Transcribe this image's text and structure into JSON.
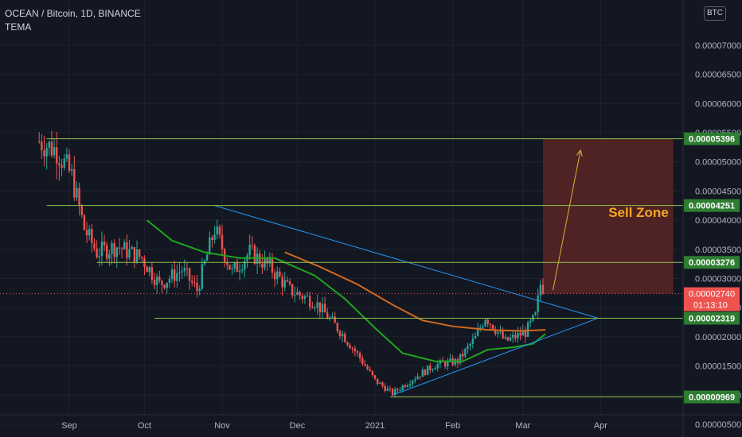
{
  "header": {
    "symbol_line": "OCEAN / Bitcoin, 1D, BINANCE",
    "indicator": "TEMA",
    "currency_badge": "BTC"
  },
  "annotation": {
    "sell_zone_label": "Sell Zone"
  },
  "price_tag": {
    "last_price": "0.00002740",
    "countdown": "01:13:10"
  },
  "colors": {
    "background": "#131722",
    "grid": "#1e222d",
    "up_candle": "#26a69a",
    "down_candle": "#ef5350",
    "level_line": "#8bc34a",
    "level_tag": "#2e7d32",
    "trendline": "#2196f3",
    "tema_fast": "#1fa61f",
    "tema_slow": "#d2691e",
    "sell_zone_fill": "#5a2424",
    "sell_zone_text": "#f5a623",
    "arrow": "#e0b23a",
    "price_tag": "#ef5350"
  },
  "chart_data": {
    "type": "candlestick",
    "title": "OCEAN / Bitcoin, 1D, BINANCE",
    "ylim": [
      4.5e-06,
      7.1e-06
    ],
    "y_ticks": [
      {
        "label": "0.00000500",
        "value": 5e-06
      },
      {
        "label": "0.00001000",
        "value": 1e-05
      },
      {
        "label": "0.00001500",
        "value": 1.5e-05
      },
      {
        "label": "0.00002000",
        "value": 2e-05
      },
      {
        "label": "0.00002500",
        "value": 2.5e-05
      },
      {
        "label": "0.00003000",
        "value": 3e-05
      },
      {
        "label": "0.00003500",
        "value": 3.5e-05
      },
      {
        "label": "0.00004000",
        "value": 4e-05
      },
      {
        "label": "0.00004500",
        "value": 4.5e-05
      },
      {
        "label": "0.00005000",
        "value": 5e-05
      },
      {
        "label": "0.00005500",
        "value": 5.5e-05
      },
      {
        "label": "0.00006000",
        "value": 6e-05
      },
      {
        "label": "0.00006500",
        "value": 6.5e-05
      },
      {
        "label": "0.00007000",
        "value": 7e-05
      }
    ],
    "x_ticks": [
      {
        "label": "Sep",
        "date": "2020-09-01"
      },
      {
        "label": "Oct",
        "date": "2020-10-01"
      },
      {
        "label": "Nov",
        "date": "2020-11-01"
      },
      {
        "label": "Dec",
        "date": "2020-12-01"
      },
      {
        "label": "2021",
        "date": "2021-01-01"
      },
      {
        "label": "Feb",
        "date": "2021-02-01"
      },
      {
        "label": "Mar",
        "date": "2021-03-01"
      },
      {
        "label": "Apr",
        "date": "2021-04-01"
      }
    ],
    "candle_start_date": "2020-08-20",
    "anchor_points": [
      {
        "date": "2020-08-20",
        "price": 5.35e-05
      },
      {
        "date": "2020-08-27",
        "price": 5.2e-05
      },
      {
        "date": "2020-09-02",
        "price": 4.75e-05
      },
      {
        "date": "2020-09-07",
        "price": 3.85e-05
      },
      {
        "date": "2020-09-12",
        "price": 3.45e-05
      },
      {
        "date": "2020-09-20",
        "price": 3.55e-05
      },
      {
        "date": "2020-09-30",
        "price": 3.35e-05
      },
      {
        "date": "2020-10-07",
        "price": 2.9e-05
      },
      {
        "date": "2020-10-16",
        "price": 3.15e-05
      },
      {
        "date": "2020-10-22",
        "price": 2.8e-05
      },
      {
        "date": "2020-10-29",
        "price": 3.85e-05
      },
      {
        "date": "2020-11-05",
        "price": 3.1e-05
      },
      {
        "date": "2020-11-12",
        "price": 3.45e-05
      },
      {
        "date": "2020-11-20",
        "price": 3.2e-05
      },
      {
        "date": "2020-11-28",
        "price": 2.8e-05
      },
      {
        "date": "2020-12-08",
        "price": 2.6e-05
      },
      {
        "date": "2020-12-18",
        "price": 2.1e-05
      },
      {
        "date": "2020-12-25",
        "price": 1.7e-05
      },
      {
        "date": "2021-01-01",
        "price": 1.25e-05
      },
      {
        "date": "2021-01-08",
        "price": 1.03e-05
      },
      {
        "date": "2021-01-16",
        "price": 1.28e-05
      },
      {
        "date": "2021-01-25",
        "price": 1.52e-05
      },
      {
        "date": "2021-02-03",
        "price": 1.58e-05
      },
      {
        "date": "2021-02-10",
        "price": 1.98e-05
      },
      {
        "date": "2021-02-14",
        "price": 2.35e-05
      },
      {
        "date": "2021-02-22",
        "price": 1.92e-05
      },
      {
        "date": "2021-03-02",
        "price": 2.08e-05
      },
      {
        "date": "2021-03-06",
        "price": 2.35e-05
      },
      {
        "date": "2021-03-08",
        "price": 2.9e-05
      },
      {
        "date": "2021-03-09",
        "price": 2.74e-05
      }
    ],
    "tema_fast": {
      "color": "#1fa61f",
      "points": [
        {
          "date": "2020-10-02",
          "price": 4e-05
        },
        {
          "date": "2020-10-12",
          "price": 3.65e-05
        },
        {
          "date": "2020-10-25",
          "price": 3.45e-05
        },
        {
          "date": "2020-11-08",
          "price": 3.35e-05
        },
        {
          "date": "2020-11-22",
          "price": 3.35e-05
        },
        {
          "date": "2020-12-08",
          "price": 3.05e-05
        },
        {
          "date": "2020-12-20",
          "price": 2.65e-05
        },
        {
          "date": "2021-01-01",
          "price": 2.15e-05
        },
        {
          "date": "2021-01-12",
          "price": 1.72e-05
        },
        {
          "date": "2021-01-25",
          "price": 1.58e-05
        },
        {
          "date": "2021-02-05",
          "price": 1.58e-05
        },
        {
          "date": "2021-02-15",
          "price": 1.78e-05
        },
        {
          "date": "2021-02-25",
          "price": 1.82e-05
        },
        {
          "date": "2021-03-05",
          "price": 1.88e-05
        },
        {
          "date": "2021-03-10",
          "price": 2.05e-05
        }
      ]
    },
    "tema_slow": {
      "color": "#d2691e",
      "points": [
        {
          "date": "2020-11-26",
          "price": 3.45e-05
        },
        {
          "date": "2020-12-10",
          "price": 3.2e-05
        },
        {
          "date": "2020-12-25",
          "price": 2.9e-05
        },
        {
          "date": "2021-01-08",
          "price": 2.55e-05
        },
        {
          "date": "2021-01-20",
          "price": 2.28e-05
        },
        {
          "date": "2021-02-01",
          "price": 2.18e-05
        },
        {
          "date": "2021-02-15",
          "price": 2.12e-05
        },
        {
          "date": "2021-02-28",
          "price": 2.1e-05
        },
        {
          "date": "2021-03-10",
          "price": 2.12e-05
        }
      ]
    },
    "horizontal_levels": [
      {
        "label": "0.00005396",
        "value": 5.396e-05,
        "from": "2020-08-23"
      },
      {
        "label": "0.00004251",
        "value": 4.251e-05,
        "from": "2020-08-23"
      },
      {
        "label": "0.00003276",
        "value": 3.276e-05,
        "from": "2020-09-12"
      },
      {
        "label": "0.00002319",
        "value": 2.319e-05,
        "from": "2020-10-05"
      },
      {
        "label": "0.00000969",
        "value": 9.69e-06,
        "from": "2021-01-07"
      }
    ],
    "trendlines": [
      {
        "from": {
          "date": "2020-10-29",
          "price": 4.25e-05
        },
        "to": {
          "date": "2021-03-31",
          "price": 2.32e-05
        }
      },
      {
        "from": {
          "date": "2021-01-08",
          "price": 1e-05
        },
        "to": {
          "date": "2021-03-31",
          "price": 2.32e-05
        }
      }
    ],
    "sell_zone": {
      "from": "2021-03-09",
      "to": "2021-04-30",
      "price_low": 2.74e-05,
      "price_high": 5.396e-05
    },
    "arrow": {
      "from": {
        "date": "2021-03-13",
        "price": 2.8e-05
      },
      "to": {
        "date": "2021-03-24",
        "price": 5.2e-05
      }
    },
    "last_price": {
      "value": 2.74e-05,
      "from": "2020-08-14"
    }
  }
}
